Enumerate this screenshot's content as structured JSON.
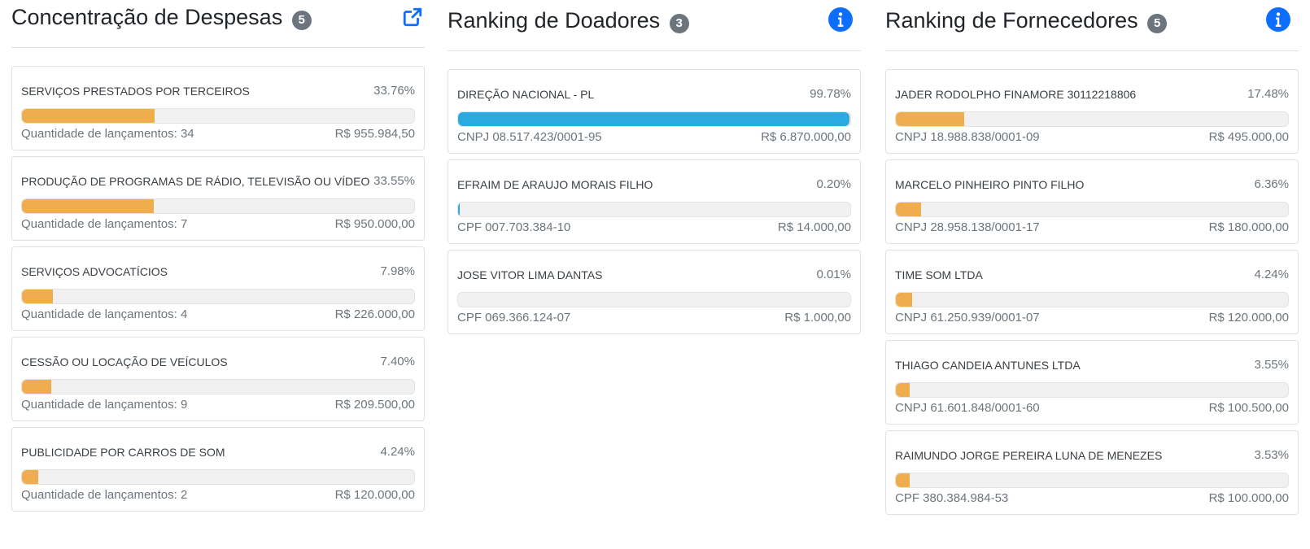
{
  "colors": {
    "accent_orange": "#f0ad4e",
    "accent_blue": "#29abe2",
    "link_blue": "#0d6efd",
    "badge_gray": "#6c757d"
  },
  "despesas": {
    "title": "Concentração de Despesas",
    "count": "5",
    "icon": "external-link-icon",
    "items": [
      {
        "name": "SERVIÇOS PRESTADOS POR TERCEIROS",
        "pct_label": "33.76%",
        "pct": 33.76,
        "sub": "Quantidade de lançamentos: 34",
        "value": "R$ 955.984,50"
      },
      {
        "name": "PRODUÇÃO DE PROGRAMAS DE RÁDIO, TELEVISÃO OU VÍDEO",
        "pct_label": "33.55%",
        "pct": 33.55,
        "sub": "Quantidade de lançamentos: 7",
        "value": "R$ 950.000,00"
      },
      {
        "name": "SERVIÇOS ADVOCATÍCIOS",
        "pct_label": "7.98%",
        "pct": 7.98,
        "sub": "Quantidade de lançamentos: 4",
        "value": "R$ 226.000,00"
      },
      {
        "name": "CESSÃO OU LOCAÇÃO DE VEÍCULOS",
        "pct_label": "7.40%",
        "pct": 7.4,
        "sub": "Quantidade de lançamentos: 9",
        "value": "R$ 209.500,00"
      },
      {
        "name": "PUBLICIDADE POR CARROS DE SOM",
        "pct_label": "4.24%",
        "pct": 4.24,
        "sub": "Quantidade de lançamentos: 2",
        "value": "R$ 120.000,00"
      }
    ]
  },
  "doadores": {
    "title": "Ranking de Doadores",
    "count": "3",
    "icon": "info-icon",
    "items": [
      {
        "name": "DIREÇÃO NACIONAL - PL",
        "pct_label": "99.78%",
        "pct": 99.78,
        "sub": "CNPJ 08.517.423/0001-95",
        "value": "R$ 6.870.000,00"
      },
      {
        "name": "EFRAIM DE ARAUJO MORAIS FILHO",
        "pct_label": "0.20%",
        "pct": 0.2,
        "sub": "CPF 007.703.384-10",
        "value": "R$ 14.000,00"
      },
      {
        "name": "JOSE VITOR LIMA DANTAS",
        "pct_label": "0.01%",
        "pct": 0.01,
        "sub": "CPF 069.366.124-07",
        "value": "R$ 1.000,00"
      }
    ]
  },
  "fornecedores": {
    "title": "Ranking de Fornecedores",
    "count": "5",
    "icon": "info-icon",
    "items": [
      {
        "name": "JADER RODOLPHO FINAMORE 30112218806",
        "pct_label": "17.48%",
        "pct": 17.48,
        "sub": "CNPJ 18.988.838/0001-09",
        "value": "R$ 495.000,00"
      },
      {
        "name": "MARCELO PINHEIRO PINTO FILHO",
        "pct_label": "6.36%",
        "pct": 6.36,
        "sub": "CNPJ 28.958.138/0001-17",
        "value": "R$ 180.000,00"
      },
      {
        "name": "TIME SOM LTDA",
        "pct_label": "4.24%",
        "pct": 4.24,
        "sub": "CNPJ 61.250.939/0001-07",
        "value": "R$ 120.000,00"
      },
      {
        "name": "THIAGO CANDEIA ANTUNES LTDA",
        "pct_label": "3.55%",
        "pct": 3.55,
        "sub": "CNPJ 61.601.848/0001-60",
        "value": "R$ 100.500,00"
      },
      {
        "name": "RAIMUNDO JORGE PEREIRA LUNA DE MENEZES",
        "pct_label": "3.53%",
        "pct": 3.53,
        "sub": "CPF 380.384.984-53",
        "value": "R$ 100.000,00"
      }
    ]
  }
}
